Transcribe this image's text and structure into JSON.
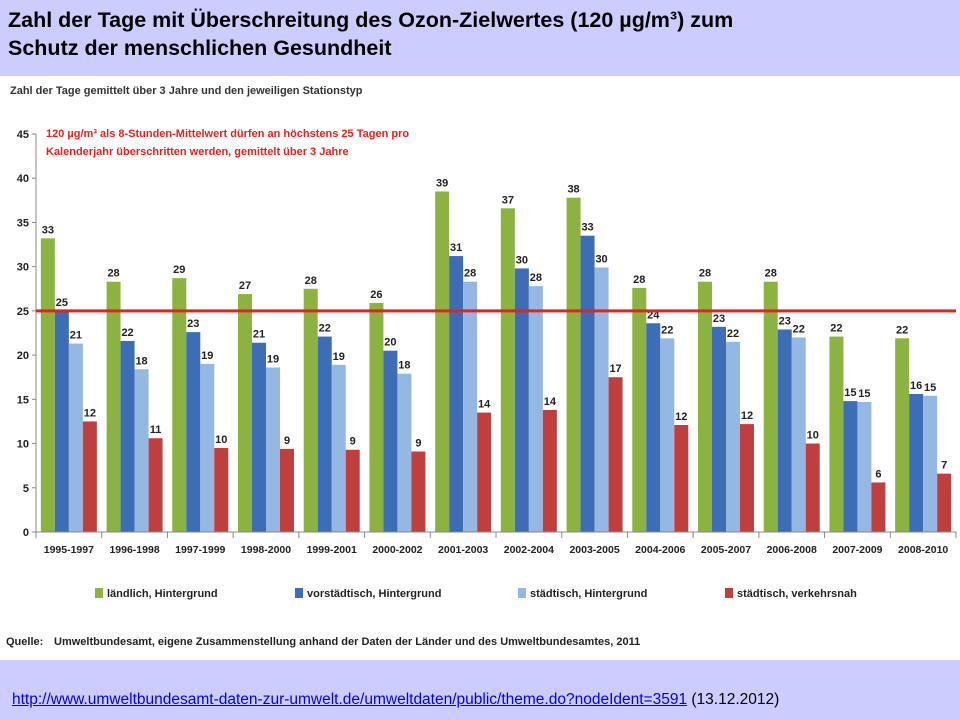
{
  "header": {
    "title_line1": "Zahl der Tage mit Überschreitung des Ozon-Zielwertes (120 µg/m³) zum",
    "title_line2": "Schutz der menschlichen Gesundheit"
  },
  "chart_data": {
    "type": "bar",
    "title": "Zahl der Tage gemittelt über 3 Jahre und den jeweiligen Stationstyp",
    "annotation_line1": "120 µg/m³ als 8-Stunden-Mittelwert dürfen an höchstens 25 Tagen pro",
    "annotation_line2": "Kalenderjahr überschritten werden, gemittelt über 3 Jahre",
    "threshold": 25,
    "ylim": [
      0,
      45
    ],
    "yticks": [
      0,
      5,
      10,
      15,
      20,
      25,
      30,
      35,
      40,
      45
    ],
    "categories": [
      "1995-1997",
      "1996-1998",
      "1997-1999",
      "1998-2000",
      "1999-2001",
      "2000-2002",
      "2001-2003",
      "2002-2004",
      "2003-2005",
      "2004-2006",
      "2005-2007",
      "2006-2008",
      "2007-2009",
      "2008-2010"
    ],
    "series": [
      {
        "name": "ländlich, Hintergrund",
        "color": "#8cb341",
        "values": [
          33.2,
          28.3,
          28.7,
          26.9,
          27.5,
          25.9,
          38.5,
          36.6,
          37.8,
          27.6,
          28.3,
          28.3,
          22.1,
          21.9
        ],
        "labels": [
          "33",
          "28",
          "29",
          "27",
          "28",
          "26",
          "39",
          "37",
          "38",
          "28",
          "28",
          "28",
          "22",
          "22"
        ]
      },
      {
        "name": "vorstädtisch, Hintergrund",
        "color": "#3c6db5",
        "values": [
          25.0,
          21.6,
          22.6,
          21.4,
          22.1,
          20.5,
          31.2,
          29.8,
          33.5,
          23.6,
          23.2,
          22.9,
          14.8,
          15.6
        ],
        "labels": [
          "25",
          "22",
          "23",
          "21",
          "22",
          "20",
          "31",
          "30",
          "33",
          "24",
          "23",
          "23",
          "15",
          "16"
        ]
      },
      {
        "name": "städtisch, Hintergrund",
        "color": "#94b8e3",
        "values": [
          21.3,
          18.4,
          19.0,
          18.6,
          18.9,
          17.9,
          28.3,
          27.8,
          29.9,
          21.9,
          21.5,
          22.0,
          14.7,
          15.4
        ],
        "labels": [
          "21",
          "18",
          "19",
          "19",
          "19",
          "18",
          "28",
          "28",
          "30",
          "22",
          "22",
          "22",
          "15",
          "15"
        ]
      },
      {
        "name": "städtisch, verkehrsnah",
        "color": "#bf3f3f",
        "values": [
          12.5,
          10.6,
          9.5,
          9.4,
          9.3,
          9.1,
          13.5,
          13.8,
          17.5,
          12.1,
          12.2,
          10.0,
          5.6,
          6.6
        ],
        "labels": [
          "12",
          "11",
          "10",
          "9",
          "9",
          "9",
          "14",
          "14",
          "17",
          "12",
          "12",
          "10",
          "6",
          "7"
        ]
      }
    ],
    "source_label": "Quelle:",
    "source_text": "Umweltbundesamt, eigene Zusammenstellung anhand der Daten der Länder und des Umweltbundesamtes, 2011"
  },
  "footer": {
    "url": "http://www.umweltbundesamt-daten-zur-umwelt.de/umweltdaten/public/theme.do?nodeIdent=3591",
    "date": "(13.12.2012)"
  }
}
